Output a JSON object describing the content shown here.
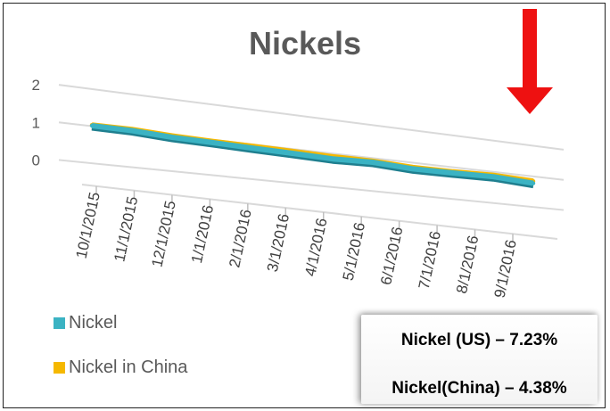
{
  "chart_data": {
    "type": "line",
    "style": "3d-ribbon",
    "title": "Nickels",
    "categories": [
      "10/1/2015",
      "11/1/2015",
      "12/1/2015",
      "1/1/2016",
      "2/1/2016",
      "3/1/2016",
      "4/1/2016",
      "5/1/2016",
      "6/1/2016",
      "7/1/2016",
      "8/1/2016",
      "9/1/2016"
    ],
    "series": [
      {
        "name": "Nickel",
        "color": "#3BB3C3",
        "values": [
          1.0,
          0.98,
          0.91,
          0.88,
          0.84,
          0.81,
          0.77,
          0.79,
          0.72,
          0.72,
          0.73,
          0.66
        ]
      },
      {
        "name": "Nickel in China",
        "color": "#F5B800",
        "values": [
          1.02,
          1.01,
          0.95,
          0.91,
          0.89,
          0.86,
          0.83,
          0.82,
          0.76,
          0.75,
          0.77,
          0.72
        ]
      }
    ],
    "yticks": [
      "0",
      "1",
      "2"
    ],
    "ylim": [
      0,
      2
    ],
    "grid": true,
    "legend_position": "bottom-left"
  },
  "callout": {
    "line1": "Nickel (US) – 7.23%",
    "line2": "Nickel(China) – 4.38%"
  },
  "arrow": {
    "direction": "down",
    "color": "#EE1111"
  }
}
